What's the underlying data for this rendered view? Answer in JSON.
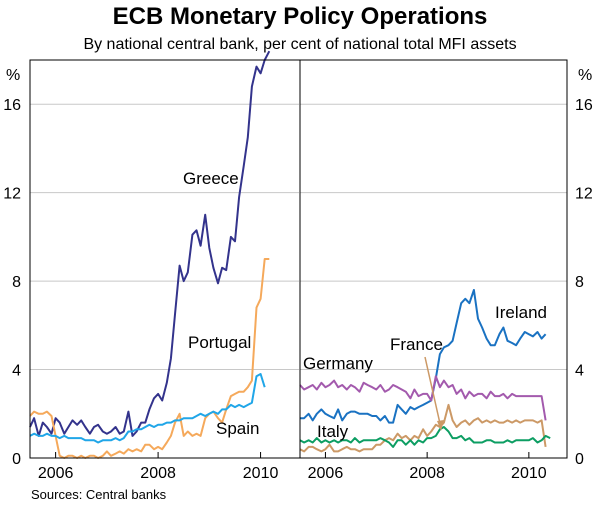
{
  "title": "ECB Monetary Policy Operations",
  "subtitle": "By national central bank, per cent of national total MFI assets",
  "source": "Sources: Central banks",
  "y_unit": "%",
  "colors": {
    "greece": "#33338c",
    "portugal": "#f5a95b",
    "spain": "#20a6e8",
    "ireland": "#1a72c2",
    "france": "#cc9966",
    "germany": "#a35aad",
    "italy": "#0d9e63"
  },
  "chart_data": [
    {
      "type": "line",
      "title": "",
      "panel": "left",
      "xlabel": "",
      "ylabel": "%",
      "xlim": [
        2005.5,
        2010.75
      ],
      "ylim": [
        0,
        18
      ],
      "yticks": [
        0,
        4,
        8,
        12,
        16
      ],
      "yticklabels": [
        "0",
        "4",
        "8",
        "12",
        "16"
      ],
      "xticks": [
        2006,
        2008,
        2010
      ],
      "xticklabels": [
        "2006",
        "2008",
        "2010"
      ],
      "series": [
        {
          "name": "Greece",
          "color_key": "greece",
          "x": [
            2005.5,
            2005.58,
            2005.67,
            2005.75,
            2005.83,
            2005.92,
            2006.0,
            2006.08,
            2006.17,
            2006.25,
            2006.33,
            2006.42,
            2006.5,
            2006.58,
            2006.67,
            2006.75,
            2006.83,
            2006.92,
            2007.0,
            2007.08,
            2007.17,
            2007.25,
            2007.33,
            2007.42,
            2007.5,
            2007.58,
            2007.67,
            2007.75,
            2007.83,
            2007.92,
            2008.0,
            2008.08,
            2008.17,
            2008.25,
            2008.33,
            2008.42,
            2008.5,
            2008.58,
            2008.67,
            2008.75,
            2008.83,
            2008.92,
            2009.0,
            2009.08,
            2009.17,
            2009.25,
            2009.33,
            2009.42,
            2009.5,
            2009.58,
            2009.67,
            2009.75,
            2009.83,
            2009.92,
            2010.0,
            2010.08,
            2010.17,
            2010.25,
            2010.33,
            2010.42,
            2010.5
          ],
          "values": [
            1.4,
            1.8,
            1.0,
            1.6,
            1.4,
            1.1,
            1.8,
            1.6,
            1.1,
            1.4,
            1.7,
            1.5,
            1.7,
            1.4,
            1.1,
            1.4,
            1.5,
            1.2,
            1.1,
            1.2,
            1.4,
            1.1,
            1.2,
            2.1,
            1.0,
            1.2,
            1.6,
            1.6,
            2.2,
            2.7,
            2.9,
            2.6,
            3.4,
            4.5,
            6.5,
            8.7,
            8.0,
            8.4,
            10.1,
            10.3,
            9.6,
            11.0,
            9.5,
            8.6,
            7.9,
            8.6,
            8.5,
            10.0,
            9.8,
            11.8,
            13.2,
            14.5,
            16.8,
            17.7,
            17.4,
            18.0,
            18.4,
            null,
            null,
            null,
            null
          ]
        },
        {
          "name": "Portugal",
          "color_key": "portugal",
          "x": [
            2005.5,
            2005.58,
            2005.67,
            2005.75,
            2005.83,
            2005.92,
            2006.0,
            2006.08,
            2006.17,
            2006.25,
            2006.33,
            2006.42,
            2006.5,
            2006.58,
            2006.67,
            2006.75,
            2006.83,
            2006.92,
            2007.0,
            2007.08,
            2007.17,
            2007.25,
            2007.33,
            2007.42,
            2007.5,
            2007.58,
            2007.67,
            2007.75,
            2007.83,
            2007.92,
            2008.0,
            2008.08,
            2008.17,
            2008.25,
            2008.33,
            2008.42,
            2008.5,
            2008.58,
            2008.67,
            2008.75,
            2008.83,
            2008.92,
            2009.0,
            2009.08,
            2009.17,
            2009.25,
            2009.33,
            2009.42,
            2009.5,
            2009.58,
            2009.67,
            2009.75,
            2009.83,
            2009.92,
            2010.0,
            2010.08,
            2010.17,
            2010.25,
            2010.33,
            2010.42,
            2010.5
          ],
          "values": [
            1.9,
            2.1,
            2.0,
            2.0,
            2.1,
            1.9,
            1.0,
            0.1,
            0.0,
            0.1,
            0.1,
            0.0,
            0.1,
            0.0,
            0.1,
            0.1,
            0.0,
            0.1,
            0.3,
            0.1,
            0.2,
            0.3,
            0.2,
            0.4,
            0.3,
            0.4,
            0.3,
            0.6,
            0.6,
            0.4,
            0.5,
            0.4,
            0.7,
            1.0,
            1.6,
            2.0,
            1.0,
            1.2,
            1.0,
            1.1,
            1.0,
            1.8,
            2.0,
            2.1,
            1.8,
            1.6,
            2.2,
            2.8,
            2.9,
            3.0,
            3.0,
            3.2,
            3.5,
            6.8,
            7.2,
            9.0,
            9.0,
            null,
            null,
            null,
            null
          ]
        },
        {
          "name": "Spain",
          "color_key": "spain",
          "x": [
            2005.5,
            2005.58,
            2005.67,
            2005.75,
            2005.83,
            2005.92,
            2006.0,
            2006.08,
            2006.17,
            2006.25,
            2006.33,
            2006.42,
            2006.5,
            2006.58,
            2006.67,
            2006.75,
            2006.83,
            2006.92,
            2007.0,
            2007.08,
            2007.17,
            2007.25,
            2007.33,
            2007.42,
            2007.5,
            2007.58,
            2007.67,
            2007.75,
            2007.83,
            2007.92,
            2008.0,
            2008.08,
            2008.17,
            2008.25,
            2008.33,
            2008.42,
            2008.5,
            2008.58,
            2008.67,
            2008.75,
            2008.83,
            2008.92,
            2009.0,
            2009.08,
            2009.17,
            2009.25,
            2009.33,
            2009.42,
            2009.5,
            2009.58,
            2009.67,
            2009.75,
            2009.83,
            2009.92,
            2010.0,
            2010.08,
            2010.17,
            2010.25,
            2010.33,
            2010.42,
            2010.5
          ],
          "values": [
            1.0,
            1.1,
            1.0,
            1.0,
            1.1,
            1.0,
            1.0,
            0.9,
            1.0,
            0.9,
            0.9,
            0.9,
            0.9,
            0.8,
            0.8,
            0.8,
            0.7,
            0.8,
            0.8,
            0.8,
            0.9,
            0.8,
            0.9,
            1.2,
            1.2,
            1.3,
            1.3,
            1.4,
            1.5,
            1.4,
            1.5,
            1.5,
            1.6,
            1.6,
            1.7,
            1.7,
            1.8,
            1.8,
            1.8,
            1.9,
            2.0,
            1.9,
            2.0,
            2.1,
            2.0,
            2.2,
            2.2,
            2.4,
            2.3,
            2.4,
            2.3,
            2.4,
            2.5,
            3.7,
            3.8,
            3.2,
            null,
            null,
            null,
            null,
            null
          ]
        }
      ]
    },
    {
      "type": "line",
      "title": "",
      "panel": "right",
      "xlabel": "",
      "ylabel": "%",
      "xlim": [
        2005.5,
        2010.75
      ],
      "ylim": [
        0,
        18
      ],
      "yticks": [
        0,
        4,
        8,
        12,
        16
      ],
      "yticklabels": [
        "0",
        "4",
        "8",
        "12",
        "16"
      ],
      "xticks": [
        2006,
        2008,
        2010
      ],
      "xticklabels": [
        "2006",
        "2008",
        "2010"
      ],
      "series": [
        {
          "name": "Ireland",
          "color_key": "ireland",
          "x": [
            2005.5,
            2005.58,
            2005.67,
            2005.75,
            2005.83,
            2005.92,
            2006.0,
            2006.08,
            2006.17,
            2006.25,
            2006.33,
            2006.42,
            2006.5,
            2006.58,
            2006.67,
            2006.75,
            2006.83,
            2006.92,
            2007.0,
            2007.08,
            2007.17,
            2007.25,
            2007.33,
            2007.42,
            2007.5,
            2007.58,
            2007.67,
            2007.75,
            2007.83,
            2007.92,
            2008.0,
            2008.08,
            2008.17,
            2008.25,
            2008.33,
            2008.42,
            2008.5,
            2008.58,
            2008.67,
            2008.75,
            2008.83,
            2008.92,
            2009.0,
            2009.08,
            2009.17,
            2009.25,
            2009.33,
            2009.42,
            2009.5,
            2009.58,
            2009.67,
            2009.75,
            2009.83,
            2009.92,
            2010.0,
            2010.08,
            2010.17,
            2010.25,
            2010.33,
            2010.42,
            2010.5
          ],
          "values": [
            1.8,
            1.8,
            2.0,
            1.7,
            2.0,
            2.2,
            2.0,
            1.9,
            1.8,
            2.2,
            1.7,
            2.0,
            2.1,
            2.1,
            2.0,
            2.0,
            2.0,
            1.9,
            1.9,
            1.7,
            1.9,
            1.6,
            1.6,
            2.4,
            2.2,
            2.0,
            2.3,
            2.2,
            2.3,
            2.4,
            2.5,
            2.6,
            3.6,
            4.7,
            5.0,
            5.1,
            5.3,
            6.1,
            7.0,
            7.2,
            7.0,
            7.6,
            6.3,
            5.9,
            5.4,
            5.1,
            5.1,
            5.6,
            5.9,
            5.3,
            5.2,
            5.1,
            5.4,
            5.7,
            5.6,
            5.5,
            5.7,
            5.4,
            5.6,
            null,
            null
          ]
        },
        {
          "name": "France",
          "color_key": "france",
          "x": [
            2005.5,
            2005.58,
            2005.67,
            2005.75,
            2005.83,
            2005.92,
            2006.0,
            2006.08,
            2006.17,
            2006.25,
            2006.33,
            2006.42,
            2006.5,
            2006.58,
            2006.67,
            2006.75,
            2006.83,
            2006.92,
            2007.0,
            2007.08,
            2007.17,
            2007.25,
            2007.33,
            2007.42,
            2007.5,
            2007.58,
            2007.67,
            2007.75,
            2007.83,
            2007.92,
            2008.0,
            2008.08,
            2008.17,
            2008.25,
            2008.33,
            2008.42,
            2008.5,
            2008.58,
            2008.67,
            2008.75,
            2008.83,
            2008.92,
            2009.0,
            2009.08,
            2009.17,
            2009.25,
            2009.33,
            2009.42,
            2009.5,
            2009.58,
            2009.67,
            2009.75,
            2009.83,
            2009.92,
            2010.0,
            2010.08,
            2010.17,
            2010.25,
            2010.33,
            2010.42,
            2010.5
          ],
          "values": [
            0.4,
            0.3,
            0.5,
            0.5,
            0.4,
            0.3,
            0.4,
            0.6,
            0.3,
            0.3,
            0.4,
            0.5,
            0.4,
            0.4,
            0.3,
            0.4,
            0.4,
            0.4,
            0.6,
            0.6,
            0.8,
            0.9,
            0.8,
            1.1,
            0.9,
            1.0,
            0.8,
            1.0,
            0.9,
            1.3,
            1.0,
            1.2,
            1.5,
            1.4,
            1.6,
            2.4,
            1.7,
            1.4,
            1.6,
            1.7,
            1.5,
            1.7,
            1.8,
            1.6,
            1.7,
            1.6,
            1.7,
            1.6,
            1.6,
            1.7,
            1.6,
            1.7,
            1.6,
            1.7,
            1.7,
            1.7,
            1.6,
            1.7,
            0.5,
            null,
            null
          ]
        },
        {
          "name": "Germany",
          "color_key": "germany",
          "x": [
            2005.5,
            2005.58,
            2005.67,
            2005.75,
            2005.83,
            2005.92,
            2006.0,
            2006.08,
            2006.17,
            2006.25,
            2006.33,
            2006.42,
            2006.5,
            2006.58,
            2006.67,
            2006.75,
            2006.83,
            2006.92,
            2007.0,
            2007.08,
            2007.17,
            2007.25,
            2007.33,
            2007.42,
            2007.5,
            2007.58,
            2007.67,
            2007.75,
            2007.83,
            2007.92,
            2008.0,
            2008.08,
            2008.17,
            2008.25,
            2008.33,
            2008.42,
            2008.5,
            2008.58,
            2008.67,
            2008.75,
            2008.83,
            2008.92,
            2009.0,
            2009.08,
            2009.17,
            2009.25,
            2009.33,
            2009.42,
            2009.5,
            2009.58,
            2009.67,
            2009.75,
            2009.83,
            2009.92,
            2010.0,
            2010.08,
            2010.17,
            2010.25,
            2010.33,
            2010.42,
            2010.5
          ],
          "values": [
            3.3,
            3.1,
            3.2,
            3.3,
            3.1,
            3.4,
            3.2,
            3.3,
            3.5,
            3.2,
            3.3,
            3.1,
            3.3,
            3.2,
            3.0,
            3.4,
            3.3,
            3.2,
            3.1,
            3.3,
            3.0,
            3.1,
            3.3,
            3.2,
            3.1,
            3.0,
            2.7,
            3.1,
            2.8,
            2.9,
            2.9,
            2.6,
            3.7,
            3.2,
            3.5,
            3.2,
            3.3,
            2.9,
            3.1,
            2.7,
            3.0,
            2.8,
            2.9,
            2.9,
            2.7,
            3.0,
            2.8,
            2.8,
            2.9,
            2.7,
            2.9,
            2.8,
            2.8,
            2.8,
            2.8,
            2.8,
            2.8,
            2.8,
            1.7,
            null,
            null
          ]
        },
        {
          "name": "Italy",
          "color_key": "italy",
          "x": [
            2005.5,
            2005.58,
            2005.67,
            2005.75,
            2005.83,
            2005.92,
            2006.0,
            2006.08,
            2006.17,
            2006.25,
            2006.33,
            2006.42,
            2006.5,
            2006.58,
            2006.67,
            2006.75,
            2006.83,
            2006.92,
            2007.0,
            2007.08,
            2007.17,
            2007.25,
            2007.33,
            2007.42,
            2007.5,
            2007.58,
            2007.67,
            2007.75,
            2007.83,
            2007.92,
            2008.0,
            2008.08,
            2008.17,
            2008.25,
            2008.33,
            2008.42,
            2008.5,
            2008.58,
            2008.67,
            2008.75,
            2008.83,
            2008.92,
            2009.0,
            2009.08,
            2009.17,
            2009.25,
            2009.33,
            2009.42,
            2009.5,
            2009.58,
            2009.67,
            2009.75,
            2009.83,
            2009.92,
            2010.0,
            2010.08,
            2010.17,
            2010.25,
            2010.33,
            2010.42,
            2010.5
          ],
          "values": [
            0.8,
            0.7,
            0.8,
            0.7,
            0.9,
            0.7,
            0.8,
            0.7,
            0.8,
            0.7,
            0.8,
            0.8,
            0.7,
            0.9,
            0.7,
            0.8,
            0.8,
            0.8,
            0.8,
            0.9,
            0.8,
            0.7,
            0.5,
            0.8,
            0.8,
            0.6,
            0.8,
            0.6,
            0.8,
            0.7,
            0.9,
            0.9,
            1.0,
            1.3,
            1.4,
            1.2,
            0.9,
            0.9,
            1.0,
            0.8,
            0.9,
            0.7,
            0.7,
            0.7,
            0.8,
            0.8,
            0.7,
            0.7,
            0.7,
            0.8,
            0.7,
            0.8,
            0.8,
            0.8,
            0.8,
            0.9,
            0.7,
            0.8,
            1.0,
            0.9,
            null
          ]
        }
      ]
    }
  ],
  "series_labels": {
    "greece": "Greece",
    "portugal": "Portugal",
    "spain": "Spain",
    "ireland": "Ireland",
    "france": "France",
    "germany": "Germany",
    "italy": "Italy"
  }
}
